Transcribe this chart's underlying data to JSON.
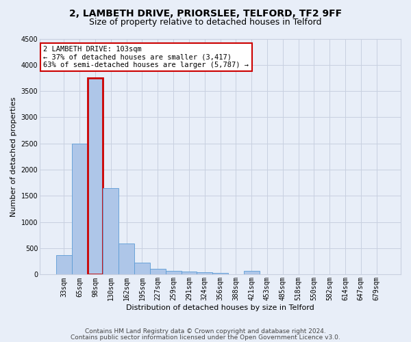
{
  "title1": "2, LAMBETH DRIVE, PRIORSLEE, TELFORD, TF2 9FF",
  "title2": "Size of property relative to detached houses in Telford",
  "xlabel": "Distribution of detached houses by size in Telford",
  "ylabel": "Number of detached properties",
  "categories": [
    "33sqm",
    "65sqm",
    "98sqm",
    "130sqm",
    "162sqm",
    "195sqm",
    "227sqm",
    "259sqm",
    "291sqm",
    "324sqm",
    "356sqm",
    "388sqm",
    "421sqm",
    "453sqm",
    "485sqm",
    "518sqm",
    "550sqm",
    "582sqm",
    "614sqm",
    "647sqm",
    "679sqm"
  ],
  "values": [
    375,
    2500,
    3750,
    1650,
    590,
    225,
    110,
    75,
    55,
    40,
    35,
    0,
    65,
    0,
    0,
    0,
    0,
    0,
    0,
    0,
    0
  ],
  "bar_color": "#aec6e8",
  "bar_edge_color": "#5b9bd5",
  "highlight_bar_index": 2,
  "highlight_edge_color": "#cc0000",
  "ylim": [
    0,
    4500
  ],
  "yticks": [
    0,
    500,
    1000,
    1500,
    2000,
    2500,
    3000,
    3500,
    4000,
    4500
  ],
  "annotation_line1": "2 LAMBETH DRIVE: 103sqm",
  "annotation_line2": "← 37% of detached houses are smaller (3,417)",
  "annotation_line3": "63% of semi-detached houses are larger (5,787) →",
  "annotation_box_color": "#ffffff",
  "annotation_box_edge_color": "#cc0000",
  "footer1": "Contains HM Land Registry data © Crown copyright and database right 2024.",
  "footer2": "Contains public sector information licensed under the Open Government Licence v3.0.",
  "bg_color": "#e8eef8",
  "plot_bg_color": "#e8eef8",
  "grid_color": "#c8d0e0",
  "title1_fontsize": 10,
  "title2_fontsize": 9,
  "axis_label_fontsize": 8,
  "tick_fontsize": 7,
  "annotation_fontsize": 7.5,
  "footer_fontsize": 6.5
}
